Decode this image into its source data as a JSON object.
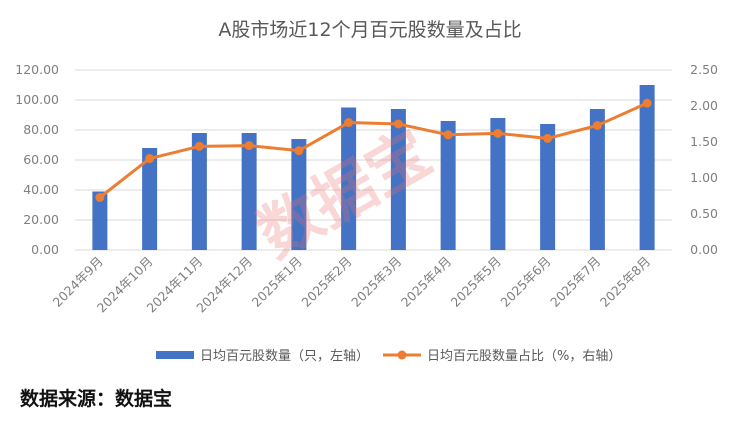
{
  "source_text": "数据来源：数据宝",
  "watermark": "数据宝",
  "colors": {
    "bar": "#4472C4",
    "line": "#ED7D31",
    "grid": "#d9d9d9"
  },
  "chart_data": {
    "type": "bar+line",
    "title": "A股市场近12个月百元股数量及占比",
    "categories": [
      "2024年9月",
      "2024年10月",
      "2024年11月",
      "2024年12月",
      "2025年1月",
      "2025年2月",
      "2025年3月",
      "2025年4月",
      "2025年5月",
      "2025年6月",
      "2025年7月",
      "2025年8月"
    ],
    "series": [
      {
        "name": "日均百元股数量（只，左轴）",
        "type": "bar",
        "axis": "left",
        "values": [
          39,
          68,
          78,
          78,
          74,
          95,
          94,
          86,
          88,
          84,
          94,
          110
        ]
      },
      {
        "name": "日均百元股数量占比（%，右轴）",
        "type": "line",
        "axis": "right",
        "values": [
          0.73,
          1.27,
          1.44,
          1.45,
          1.38,
          1.77,
          1.75,
          1.6,
          1.62,
          1.55,
          1.73,
          2.04
        ]
      }
    ],
    "y_left": {
      "ticks": [
        "0.00",
        "20.00",
        "40.00",
        "60.00",
        "80.00",
        "100.00",
        "120.00"
      ],
      "range": [
        0,
        120
      ]
    },
    "y_right": {
      "ticks": [
        "0.00",
        "0.50",
        "1.00",
        "1.50",
        "2.00",
        "2.50"
      ],
      "range": [
        0,
        2.5
      ]
    },
    "grid": true,
    "legend_position": "bottom"
  }
}
